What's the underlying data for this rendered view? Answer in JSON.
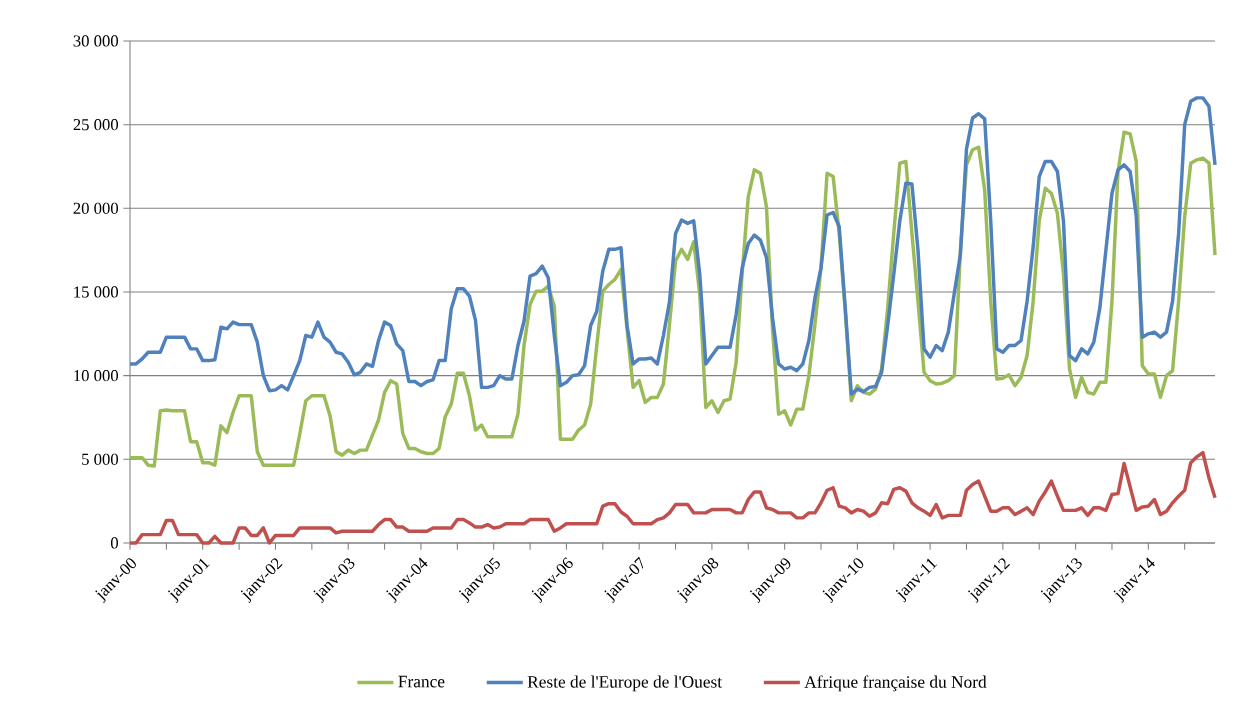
{
  "chart_data": {
    "type": "line",
    "x": [
      "2000-01",
      "2000-02",
      "2000-03",
      "2000-04",
      "2000-05",
      "2000-06",
      "2000-07",
      "2000-08",
      "2000-09",
      "2000-10",
      "2000-11",
      "2000-12",
      "2001-01",
      "2001-02",
      "2001-03",
      "2001-04",
      "2001-05",
      "2001-06",
      "2001-07",
      "2001-08",
      "2001-09",
      "2001-10",
      "2001-11",
      "2001-12",
      "2002-01",
      "2002-02",
      "2002-03",
      "2002-04",
      "2002-05",
      "2002-06",
      "2002-07",
      "2002-08",
      "2002-09",
      "2002-10",
      "2002-11",
      "2002-12",
      "2003-01",
      "2003-02",
      "2003-03",
      "2003-04",
      "2003-05",
      "2003-06",
      "2003-07",
      "2003-08",
      "2003-09",
      "2003-10",
      "2003-11",
      "2003-12",
      "2004-01",
      "2004-02",
      "2004-03",
      "2004-04",
      "2004-05",
      "2004-06",
      "2004-07",
      "2004-08",
      "2004-09",
      "2004-10",
      "2004-11",
      "2004-12",
      "2005-01",
      "2005-02",
      "2005-03",
      "2005-04",
      "2005-05",
      "2005-06",
      "2005-07",
      "2005-08",
      "2005-09",
      "2005-10",
      "2005-11",
      "2005-12",
      "2006-01",
      "2006-02",
      "2006-03",
      "2006-04",
      "2006-05",
      "2006-06",
      "2006-07",
      "2006-08",
      "2006-09",
      "2006-10",
      "2006-11",
      "2006-12",
      "2007-01",
      "2007-02",
      "2007-03",
      "2007-04",
      "2007-05",
      "2007-06",
      "2007-07",
      "2007-08",
      "2007-09",
      "2007-10",
      "2007-11",
      "2007-12",
      "2008-01",
      "2008-02",
      "2008-03",
      "2008-04",
      "2008-05",
      "2008-06",
      "2008-07",
      "2008-08",
      "2008-09",
      "2008-10",
      "2008-11",
      "2008-12",
      "2009-01",
      "2009-02",
      "2009-03",
      "2009-04",
      "2009-05",
      "2009-06",
      "2009-07",
      "2009-08",
      "2009-09",
      "2009-10",
      "2009-11",
      "2009-12",
      "2010-01",
      "2010-02",
      "2010-03",
      "2010-04",
      "2010-05",
      "2010-06",
      "2010-07",
      "2010-08",
      "2010-09",
      "2010-10",
      "2010-11",
      "2010-12",
      "2011-01",
      "2011-02",
      "2011-03",
      "2011-04",
      "2011-05",
      "2011-06",
      "2011-07",
      "2011-08",
      "2011-09",
      "2011-10",
      "2011-11",
      "2011-12",
      "2012-01",
      "2012-02",
      "2012-03",
      "2012-04",
      "2012-05",
      "2012-06",
      "2012-07",
      "2012-08",
      "2012-09",
      "2012-10",
      "2012-11",
      "2012-12",
      "2013-01",
      "2013-02",
      "2013-03",
      "2013-04",
      "2013-05",
      "2013-06",
      "2013-07",
      "2013-08",
      "2013-09",
      "2013-10",
      "2013-11",
      "2013-12",
      "2014-01",
      "2014-02",
      "2014-03",
      "2014-04",
      "2014-05",
      "2014-06",
      "2014-07",
      "2014-08",
      "2014-09",
      "2014-10",
      "2014-11",
      "2014-12"
    ],
    "series": [
      {
        "name": "France",
        "color": "#9bbb59",
        "values": [
          5100,
          5100,
          5100,
          4650,
          4600,
          7900,
          7950,
          7900,
          7900,
          7900,
          6050,
          6050,
          4800,
          4800,
          4650,
          7000,
          6600,
          7800,
          8800,
          8800,
          8800,
          5450,
          4650,
          4650,
          4650,
          4650,
          4650,
          4650,
          6500,
          8500,
          8800,
          8800,
          8800,
          7600,
          5450,
          5250,
          5550,
          5350,
          5550,
          5550,
          6450,
          7350,
          9000,
          9700,
          9500,
          6550,
          5650,
          5650,
          5450,
          5350,
          5350,
          5650,
          7550,
          8300,
          10150,
          10150,
          8800,
          6750,
          7050,
          6350,
          6350,
          6350,
          6350,
          6350,
          7700,
          11800,
          14250,
          15050,
          15050,
          15350,
          14150,
          6200,
          6200,
          6200,
          6750,
          7050,
          8300,
          11800,
          15050,
          15450,
          15750,
          16350,
          12800,
          9300,
          9700,
          8400,
          8700,
          8700,
          9500,
          13050,
          16850,
          17550,
          16950,
          18000,
          14850,
          8100,
          8500,
          7800,
          8500,
          8600,
          10800,
          16150,
          20700,
          22300,
          22100,
          20100,
          12800,
          7700,
          7900,
          7050,
          8000,
          8000,
          10000,
          13050,
          16450,
          22100,
          21900,
          18500,
          13850,
          8500,
          9400,
          9000,
          8900,
          9200,
          10400,
          14050,
          18500,
          22700,
          22800,
          18500,
          14450,
          10200,
          9700,
          9500,
          9550,
          9700,
          10000,
          17500,
          22600,
          23500,
          23650,
          21100,
          14450,
          9800,
          9850,
          10050,
          9400,
          9900,
          11200,
          14450,
          19250,
          21200,
          20900,
          19700,
          16050,
          10400,
          8700,
          9900,
          9000,
          8900,
          9600,
          9600,
          14450,
          22200,
          24550,
          24450,
          22800,
          10600,
          10100,
          10100,
          8700,
          10000,
          10300,
          14450,
          19500,
          22700,
          22900,
          23000,
          22700,
          17200
        ]
      },
      {
        "name": "Reste de l'Europe de l'Ouest",
        "color": "#4f81bd",
        "values": [
          10700,
          10700,
          11000,
          11400,
          11400,
          11400,
          12300,
          12300,
          12300,
          12300,
          11600,
          11600,
          10900,
          10900,
          10950,
          12900,
          12800,
          13200,
          13050,
          13050,
          13050,
          12000,
          10000,
          9100,
          9150,
          9400,
          9150,
          10000,
          10900,
          12400,
          12300,
          13200,
          12300,
          12000,
          11400,
          11300,
          10800,
          10050,
          10200,
          10700,
          10550,
          12100,
          13200,
          13000,
          11900,
          11500,
          9650,
          9650,
          9400,
          9650,
          9750,
          10900,
          10900,
          14000,
          15200,
          15200,
          14750,
          13300,
          9300,
          9300,
          9400,
          10000,
          9800,
          9800,
          11800,
          13250,
          15950,
          16100,
          16550,
          15850,
          12400,
          9400,
          9600,
          10000,
          10050,
          10600,
          13000,
          13850,
          16250,
          17550,
          17550,
          17650,
          13000,
          10700,
          11000,
          11000,
          11050,
          10700,
          12400,
          14400,
          18500,
          19300,
          19100,
          19250,
          16050,
          10700,
          11200,
          11700,
          11700,
          11700,
          13650,
          16450,
          17900,
          18400,
          18100,
          17050,
          13450,
          10700,
          10400,
          10500,
          10300,
          10700,
          12100,
          14650,
          16450,
          19600,
          19750,
          18900,
          14050,
          8900,
          9200,
          9050,
          9300,
          9350,
          10200,
          13000,
          16050,
          19250,
          21500,
          21450,
          17500,
          11600,
          11100,
          11800,
          11500,
          12600,
          14950,
          17250,
          23550,
          25400,
          25650,
          25350,
          19250,
          11600,
          11400,
          11800,
          11800,
          12100,
          14450,
          17700,
          21900,
          22800,
          22800,
          22200,
          19250,
          11200,
          10900,
          11600,
          11300,
          12000,
          14050,
          17500,
          20900,
          22300,
          22600,
          22200,
          19550,
          12300,
          12500,
          12600,
          12300,
          12600,
          14450,
          18500,
          25000,
          26400,
          26600,
          26600,
          26100,
          22600
        ]
      },
      {
        "name": "Afrique française du Nord",
        "color": "#c0504d",
        "values": [
          0,
          0,
          500,
          500,
          500,
          500,
          1350,
          1350,
          500,
          500,
          500,
          500,
          0,
          0,
          400,
          0,
          0,
          0,
          900,
          900,
          450,
          450,
          900,
          0,
          450,
          450,
          450,
          450,
          900,
          900,
          900,
          900,
          900,
          900,
          600,
          700,
          700,
          700,
          700,
          700,
          700,
          1100,
          1400,
          1400,
          950,
          950,
          700,
          700,
          700,
          700,
          900,
          900,
          900,
          900,
          1400,
          1400,
          1200,
          950,
          950,
          1100,
          900,
          950,
          1150,
          1150,
          1150,
          1150,
          1400,
          1400,
          1400,
          1400,
          700,
          900,
          1150,
          1150,
          1150,
          1150,
          1150,
          1150,
          2200,
          2350,
          2350,
          1850,
          1600,
          1150,
          1150,
          1150,
          1150,
          1400,
          1500,
          1800,
          2300,
          2300,
          2300,
          1800,
          1800,
          1800,
          2000,
          2000,
          2000,
          2000,
          1800,
          1800,
          2600,
          3050,
          3050,
          2100,
          2000,
          1800,
          1800,
          1800,
          1500,
          1500,
          1800,
          1800,
          2400,
          3150,
          3300,
          2200,
          2100,
          1800,
          2000,
          1900,
          1600,
          1800,
          2400,
          2350,
          3200,
          3300,
          3100,
          2400,
          2100,
          1900,
          1650,
          2300,
          1500,
          1650,
          1650,
          1650,
          3150,
          3500,
          3700,
          2800,
          1900,
          1900,
          2100,
          2100,
          1700,
          1900,
          2100,
          1700,
          2500,
          3050,
          3700,
          2800,
          1950,
          1950,
          1950,
          2100,
          1650,
          2100,
          2100,
          1950,
          2900,
          2950,
          4750,
          3350,
          1950,
          2150,
          2200,
          2600,
          1700,
          1900,
          2400,
          2800,
          3150,
          4800,
          5150,
          5400,
          3900,
          2700
        ]
      }
    ],
    "xlim": [
      "2000-01",
      "2014-12"
    ],
    "xticks": [
      {
        "value": "2000-01",
        "label": "janv-00"
      },
      {
        "value": "2000-07",
        "label": null
      },
      {
        "value": "2001-01",
        "label": "janv-01"
      },
      {
        "value": "2001-07",
        "label": null
      },
      {
        "value": "2002-01",
        "label": "janv-02"
      },
      {
        "value": "2002-07",
        "label": null
      },
      {
        "value": "2003-01",
        "label": "janv-03"
      },
      {
        "value": "2003-07",
        "label": null
      },
      {
        "value": "2004-01",
        "label": "janv-04"
      },
      {
        "value": "2004-07",
        "label": null
      },
      {
        "value": "2005-01",
        "label": "janv-05"
      },
      {
        "value": "2005-07",
        "label": null
      },
      {
        "value": "2006-01",
        "label": "janv-06"
      },
      {
        "value": "2006-07",
        "label": null
      },
      {
        "value": "2007-01",
        "label": "janv-07"
      },
      {
        "value": "2007-07",
        "label": null
      },
      {
        "value": "2008-01",
        "label": "janv-08"
      },
      {
        "value": "2008-07",
        "label": null
      },
      {
        "value": "2009-01",
        "label": "janv-09"
      },
      {
        "value": "2009-07",
        "label": null
      },
      {
        "value": "2010-01",
        "label": "janv-10"
      },
      {
        "value": "2010-07",
        "label": null
      },
      {
        "value": "2011-01",
        "label": "janv-11"
      },
      {
        "value": "2011-07",
        "label": null
      },
      {
        "value": "2012-01",
        "label": "janv-12"
      },
      {
        "value": "2012-07",
        "label": null
      },
      {
        "value": "2013-01",
        "label": "janv-13"
      },
      {
        "value": "2013-07",
        "label": null
      },
      {
        "value": "2014-01",
        "label": "janv-14"
      },
      {
        "value": "2014-07",
        "label": null
      }
    ],
    "ylim": [
      0,
      30000
    ],
    "yticks": [
      0,
      {
        "value": 5000,
        "label": "5 000"
      },
      {
        "value": 10000,
        "label": "10 000"
      },
      {
        "value": 15000,
        "label": "15 000"
      },
      {
        "value": 20000,
        "label": "20 000"
      },
      {
        "value": 25000,
        "label": "25 000"
      },
      {
        "value": 30000,
        "label": "30 000"
      }
    ],
    "grid": "y",
    "legend": "bottom"
  }
}
